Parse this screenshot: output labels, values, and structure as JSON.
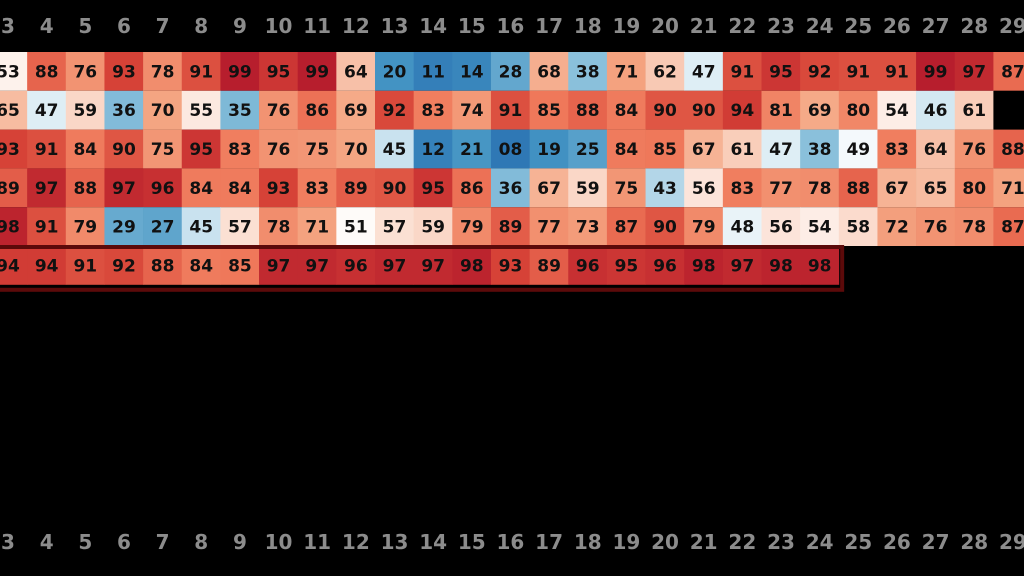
{
  "chart_data": {
    "type": "heatmap",
    "title": "",
    "xlabel": "",
    "ylabel": "",
    "columns": [
      "3",
      "4",
      "5",
      "6",
      "7",
      "8",
      "9",
      "10",
      "11",
      "12",
      "13",
      "14",
      "15",
      "16",
      "17",
      "18",
      "19",
      "20",
      "21",
      "22",
      "23",
      "24",
      "25",
      "26",
      "27",
      "28",
      "29"
    ],
    "rows": [
      {
        "values": [
          "53",
          "88",
          "76",
          "93",
          "78",
          "91",
          "99",
          "95",
          "99",
          "64",
          "20",
          "11",
          "14",
          "28",
          "68",
          "38",
          "71",
          "62",
          "47",
          "91",
          "95",
          "92",
          "91",
          "91",
          "99",
          "97",
          "87"
        ]
      },
      {
        "values": [
          "65",
          "47",
          "59",
          "36",
          "70",
          "55",
          "35",
          "76",
          "86",
          "69",
          "92",
          "83",
          "74",
          "91",
          "85",
          "88",
          "84",
          "90",
          "90",
          "94",
          "81",
          "69",
          "80",
          "54",
          "46",
          "61",
          null
        ]
      },
      {
        "values": [
          "93",
          "91",
          "84",
          "90",
          "75",
          "95",
          "83",
          "76",
          "75",
          "70",
          "45",
          "12",
          "21",
          "08",
          "19",
          "25",
          "84",
          "85",
          "67",
          "61",
          "47",
          "38",
          "49",
          "83",
          "64",
          "76",
          "88"
        ]
      },
      {
        "values": [
          "89",
          "97",
          "88",
          "97",
          "96",
          "84",
          "84",
          "93",
          "83",
          "89",
          "90",
          "95",
          "86",
          "36",
          "67",
          "59",
          "75",
          "43",
          "56",
          "83",
          "77",
          "78",
          "88",
          "67",
          "65",
          "80",
          "71"
        ]
      },
      {
        "values": [
          "98",
          "91",
          "79",
          "29",
          "27",
          "45",
          "57",
          "78",
          "71",
          "51",
          "57",
          "59",
          "79",
          "89",
          "77",
          "73",
          "87",
          "90",
          "79",
          "48",
          "56",
          "54",
          "58",
          "72",
          "76",
          "78",
          "87"
        ]
      },
      {
        "values": [
          "94",
          "94",
          "91",
          "92",
          "88",
          "84",
          "85",
          "97",
          "97",
          "96",
          "97",
          "97",
          "98",
          "93",
          "89",
          "96",
          "95",
          "96",
          "98",
          "97",
          "98",
          "98",
          null,
          null,
          null,
          null,
          null
        ]
      }
    ],
    "highlighted_row": 5,
    "value_range": [
      0,
      100
    ],
    "colormap": "diverging blue-white-red",
    "colors": {
      "background": "#000000",
      "tick_label": "#8c8c8c",
      "highlight_outline": "#5c0a0a",
      "missing_cell": "#000000"
    },
    "legend": "none",
    "grid": false
  }
}
